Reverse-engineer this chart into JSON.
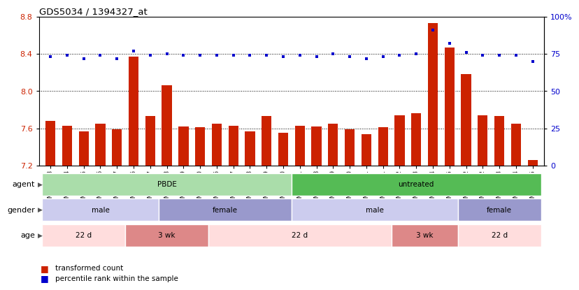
{
  "title": "GDS5034 / 1394327_at",
  "samples": [
    "GSM796783",
    "GSM796784",
    "GSM796785",
    "GSM796786",
    "GSM796787",
    "GSM796806",
    "GSM796807",
    "GSM796808",
    "GSM796809",
    "GSM796810",
    "GSM796796",
    "GSM796797",
    "GSM796798",
    "GSM796799",
    "GSM796800",
    "GSM796781",
    "GSM796788",
    "GSM796789",
    "GSM796790",
    "GSM796791",
    "GSM796801",
    "GSM796802",
    "GSM796803",
    "GSM796804",
    "GSM796805",
    "GSM796782",
    "GSM796792",
    "GSM796793",
    "GSM796794",
    "GSM796795"
  ],
  "bar_values": [
    7.68,
    7.63,
    7.57,
    7.65,
    7.59,
    8.37,
    7.73,
    8.06,
    7.62,
    7.61,
    7.65,
    7.63,
    7.57,
    7.73,
    7.55,
    7.63,
    7.62,
    7.65,
    7.59,
    7.54,
    7.61,
    7.74,
    7.76,
    8.73,
    8.47,
    8.18,
    7.74,
    7.73,
    7.65,
    7.26
  ],
  "percentile_values": [
    73,
    74,
    72,
    74,
    72,
    77,
    74,
    75,
    74,
    74,
    74,
    74,
    74,
    74,
    73,
    74,
    73,
    75,
    73,
    72,
    73,
    74,
    75,
    91,
    82,
    76,
    74,
    74,
    74,
    70
  ],
  "ymin": 7.2,
  "ymax": 8.8,
  "yticks": [
    7.2,
    7.6,
    8.0,
    8.4,
    8.8
  ],
  "right_yticks": [
    0,
    25,
    50,
    75,
    100
  ],
  "bar_color": "#cc2200",
  "dot_color": "#0000cc",
  "agent_groups": [
    {
      "label": "PBDE",
      "start": 0,
      "end": 15,
      "color": "#aaddaa"
    },
    {
      "label": "untreated",
      "start": 15,
      "end": 30,
      "color": "#55bb55"
    }
  ],
  "gender_groups": [
    {
      "label": "male",
      "start": 0,
      "end": 7,
      "color": "#ccccee"
    },
    {
      "label": "female",
      "start": 7,
      "end": 15,
      "color": "#9999cc"
    },
    {
      "label": "male",
      "start": 15,
      "end": 25,
      "color": "#ccccee"
    },
    {
      "label": "female",
      "start": 25,
      "end": 30,
      "color": "#9999cc"
    }
  ],
  "age_groups": [
    {
      "label": "22 d",
      "start": 0,
      "end": 5,
      "color": "#ffdddd"
    },
    {
      "label": "3 wk",
      "start": 5,
      "end": 10,
      "color": "#dd8888"
    },
    {
      "label": "22 d",
      "start": 10,
      "end": 21,
      "color": "#ffdddd"
    },
    {
      "label": "3 wk",
      "start": 21,
      "end": 25,
      "color": "#dd8888"
    },
    {
      "label": "22 d",
      "start": 25,
      "end": 30,
      "color": "#ffdddd"
    }
  ],
  "legend_bar_label": "transformed count",
  "legend_dot_label": "percentile rank within the sample",
  "row_labels": [
    "agent",
    "gender",
    "age"
  ]
}
